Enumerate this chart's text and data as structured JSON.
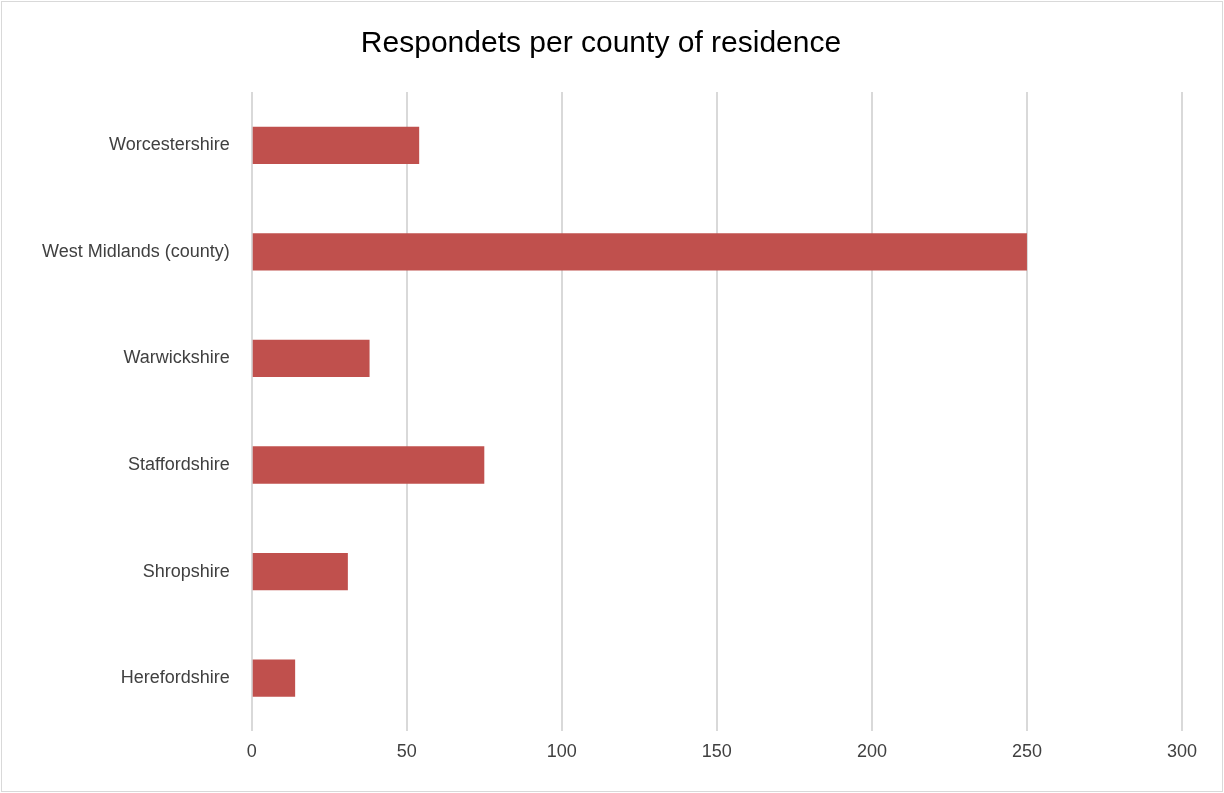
{
  "chart_data": {
    "type": "bar",
    "orientation": "horizontal",
    "title": "Respondets per county of residence",
    "categories": [
      "Worcestershire",
      "West Midlands (county)",
      "Warwickshire",
      "Staffordshire",
      "Shropshire",
      "Herefordshire"
    ],
    "values": [
      54,
      250,
      38,
      75,
      31,
      14
    ],
    "color": "#c0504d",
    "xlim": [
      0,
      300
    ],
    "xticks": [
      0,
      50,
      100,
      150,
      200,
      250,
      300
    ],
    "grid": "x"
  }
}
